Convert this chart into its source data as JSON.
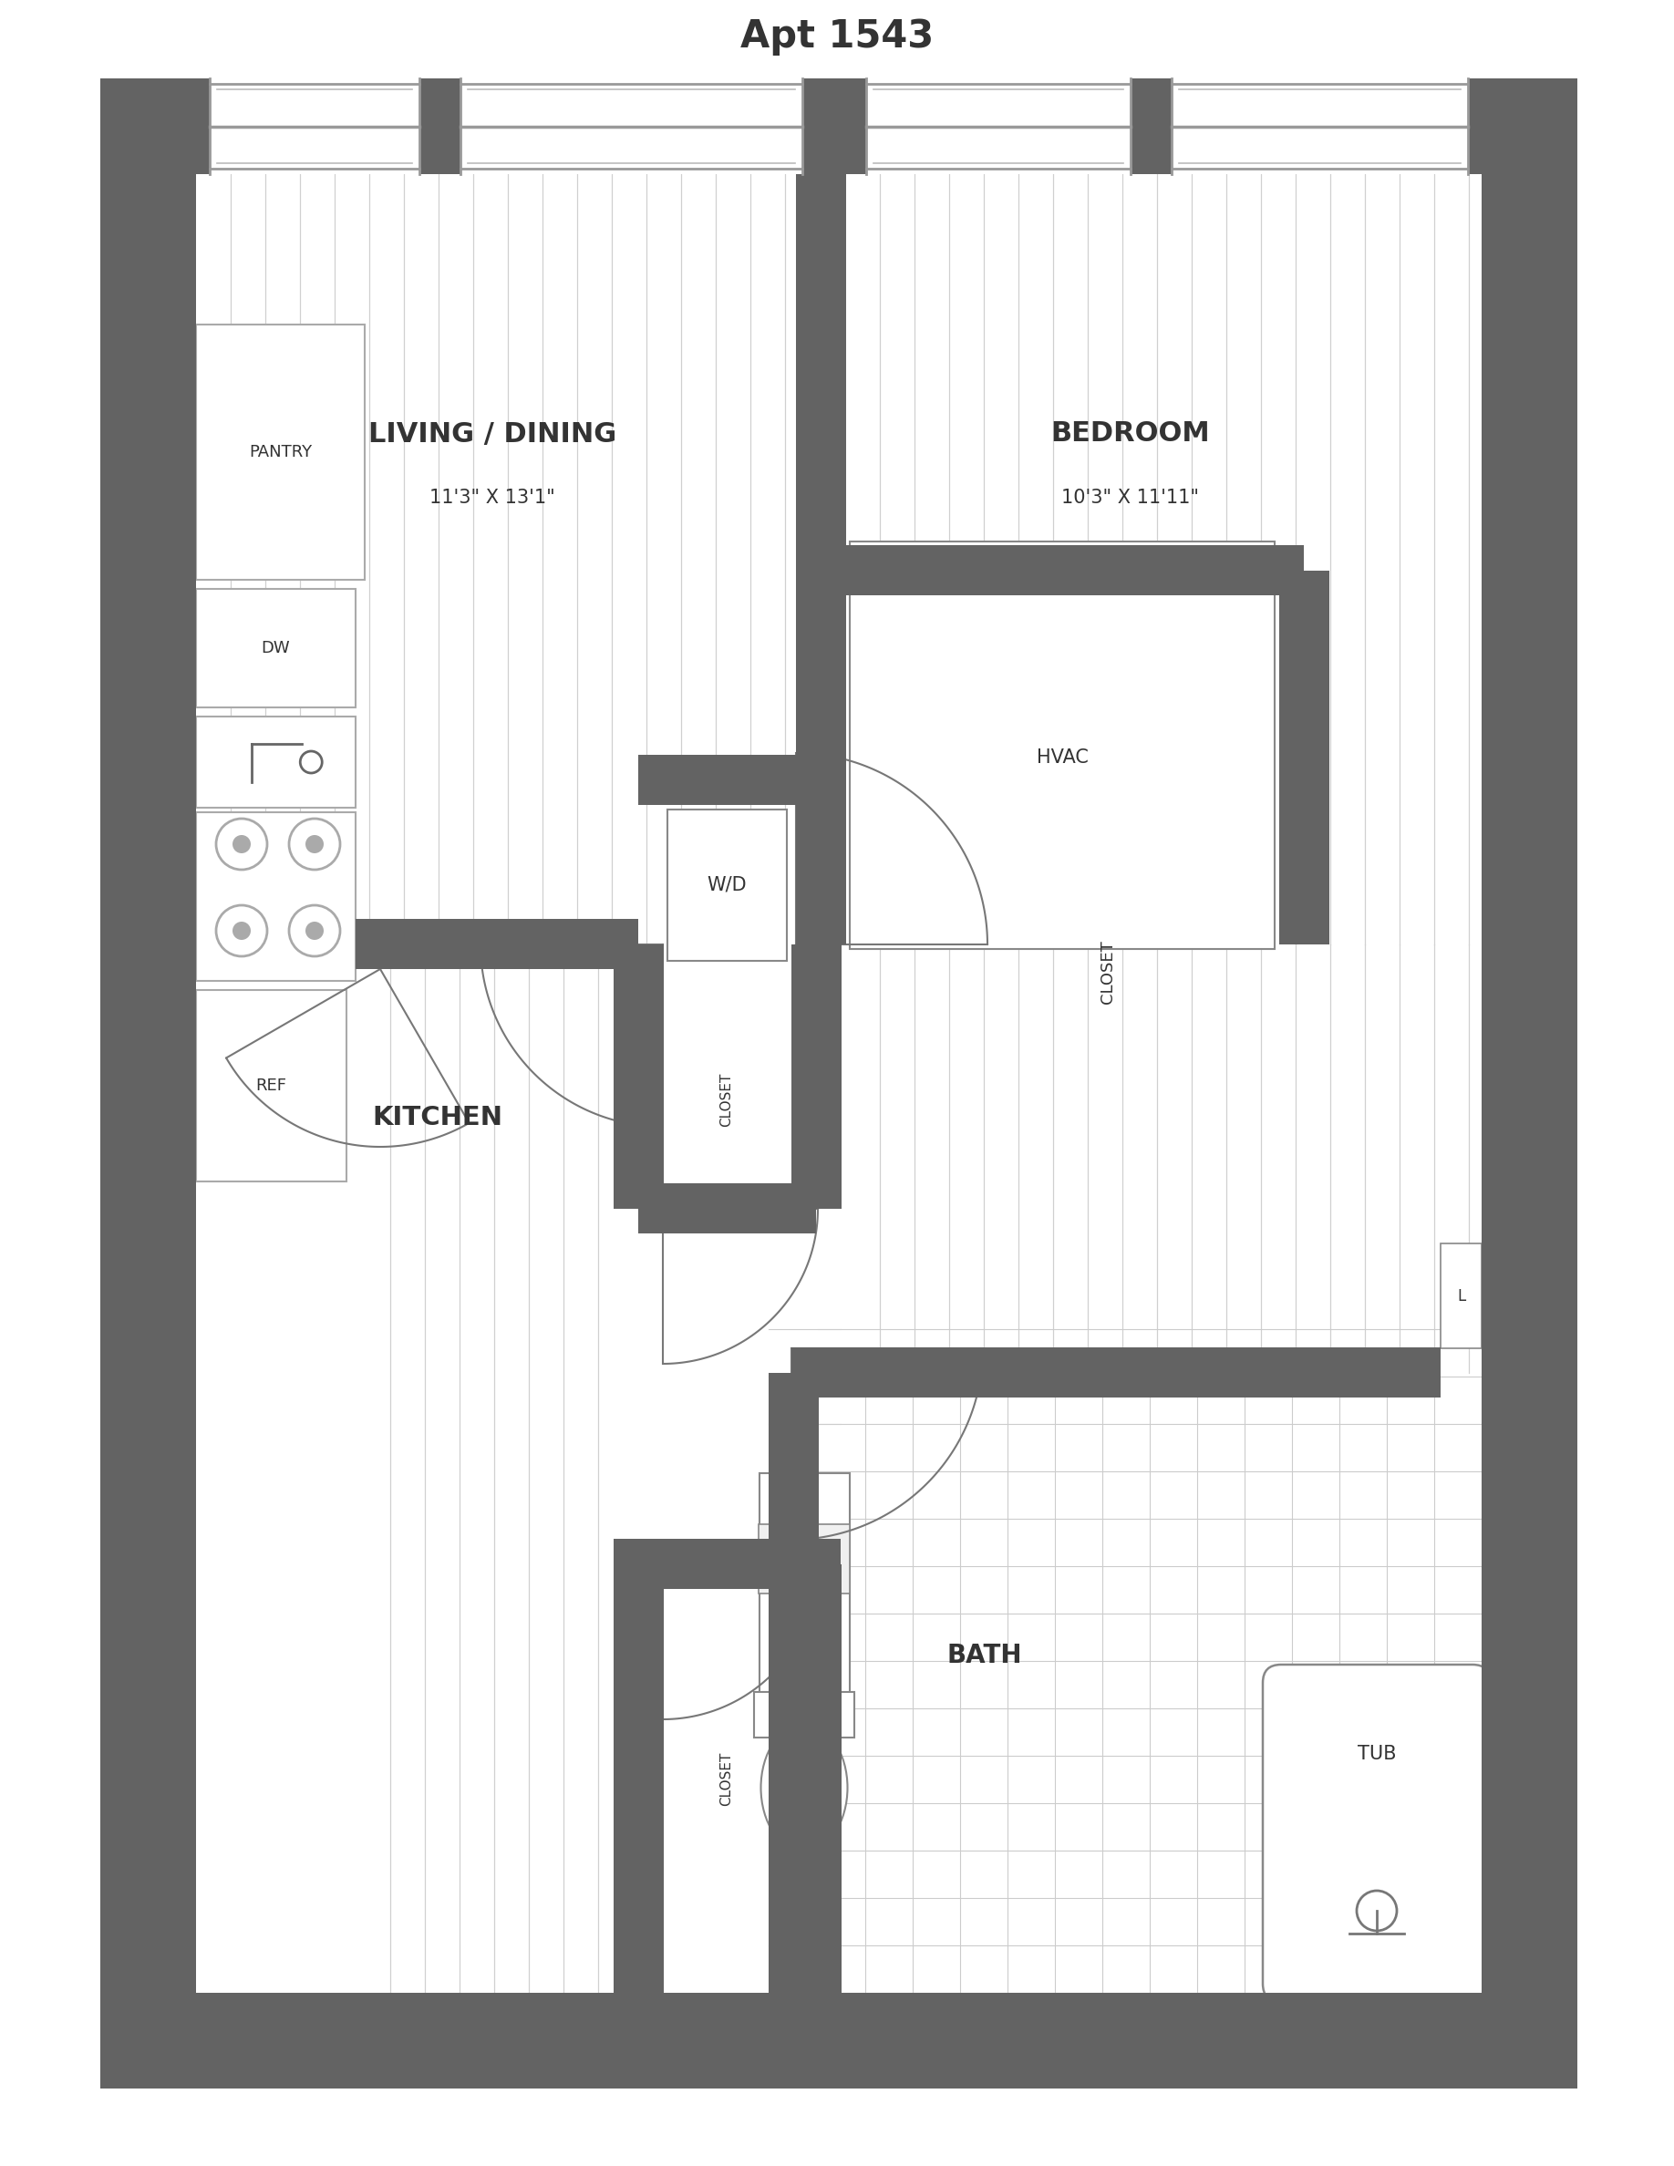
{
  "bg": "#ffffff",
  "wall_color": "#636363",
  "floor_line": "#d0d0d0",
  "tile_color": "#cccccc",
  "text_color": "#333333",
  "title": "Apt 1543",
  "rooms": {
    "living_label": "LIVING / DINING",
    "living_size": "11'3\" X 13'1\"",
    "bedroom_label": "BEDROOM",
    "bedroom_size": "10'3\" X 11'11\"",
    "kitchen_label": "KITCHEN",
    "bath_label": "BATH",
    "pantry_label": "PANTRY",
    "dw_label": "DW",
    "ref_label": "REF",
    "wd_label": "W/D",
    "hvac_label": "HVAC",
    "tub_label": "TUB",
    "linen_label": "L",
    "closet_label": "CLOSET"
  }
}
